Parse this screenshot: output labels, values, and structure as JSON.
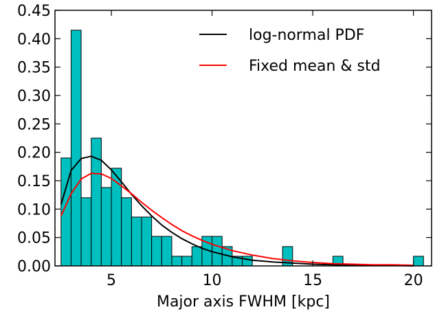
{
  "chart_data": {
    "type": "bar",
    "xlabel": "Major axis FWHM [kpc]",
    "ylabel": "",
    "xlim": [
      2.2,
      20.9
    ],
    "ylim": [
      0,
      0.45
    ],
    "xticks": [
      5,
      10,
      15,
      20
    ],
    "yticks": [
      0.0,
      0.05,
      0.1,
      0.15,
      0.2,
      0.25,
      0.3,
      0.35,
      0.4,
      0.45
    ],
    "ytick_labels": [
      "0.00",
      "0.05",
      "0.10",
      "0.15",
      "0.20",
      "0.25",
      "0.30",
      "0.35",
      "0.40",
      "0.45"
    ],
    "xtick_labels": [
      "5",
      "10",
      "15",
      "20"
    ],
    "grid": false,
    "legend_position": "top-right",
    "bar_color": "#00bfbf",
    "bar_edge_color": "#000000",
    "histogram": {
      "bin_width": 0.5,
      "bin_starts": [
        2.5,
        3.0,
        3.5,
        4.0,
        4.5,
        5.0,
        5.5,
        6.0,
        6.5,
        7.0,
        7.5,
        8.0,
        8.5,
        9.0,
        9.5,
        10.0,
        10.5,
        11.0,
        11.5,
        12.0,
        12.5,
        13.0,
        13.5,
        14.0,
        14.5,
        15.0,
        15.5,
        16.0,
        16.5,
        17.0,
        17.5,
        18.0,
        18.5,
        19.0,
        19.5,
        20.0
      ],
      "values": [
        0.19,
        0.415,
        0.12,
        0.225,
        0.138,
        0.172,
        0.12,
        0.086,
        0.086,
        0.052,
        0.052,
        0.017,
        0.017,
        0.034,
        0.052,
        0.052,
        0.034,
        0.017,
        0.017,
        0.0,
        0.0,
        0.0,
        0.034,
        0.0,
        0.0,
        0.0,
        0.0,
        0.017,
        0.0,
        0.0,
        0.0,
        0.0,
        0.0,
        0.0,
        0.0,
        0.017
      ]
    },
    "series": [
      {
        "name": "log-normal PDF",
        "color": "#000000",
        "x": [
          2.5,
          3.0,
          3.5,
          4.0,
          4.5,
          5.0,
          5.5,
          6.0,
          6.5,
          7.0,
          7.5,
          8.0,
          8.5,
          9.0,
          9.5,
          10.0,
          11.0,
          12.0,
          13.0,
          14.0,
          15.0,
          16.0,
          17.0,
          18.0,
          19.0,
          20.0
        ],
        "y": [
          0.108,
          0.168,
          0.189,
          0.193,
          0.186,
          0.169,
          0.148,
          0.126,
          0.106,
          0.088,
          0.072,
          0.059,
          0.048,
          0.039,
          0.031,
          0.025,
          0.016,
          0.01,
          0.007,
          0.005,
          0.003,
          0.002,
          0.001,
          0.001,
          0.001,
          0.0
        ]
      },
      {
        "name": "Fixed mean & std",
        "color": "#ff0000",
        "x": [
          2.5,
          3.0,
          3.5,
          4.0,
          4.5,
          5.0,
          5.5,
          6.0,
          6.5,
          7.0,
          7.5,
          8.0,
          8.5,
          9.0,
          9.5,
          10.0,
          11.0,
          12.0,
          13.0,
          14.0,
          15.0,
          16.0,
          17.0,
          18.0,
          19.0,
          20.0
        ],
        "y": [
          0.088,
          0.127,
          0.153,
          0.163,
          0.162,
          0.154,
          0.141,
          0.127,
          0.112,
          0.098,
          0.085,
          0.073,
          0.062,
          0.053,
          0.045,
          0.038,
          0.027,
          0.019,
          0.013,
          0.009,
          0.006,
          0.004,
          0.003,
          0.002,
          0.002,
          0.001
        ]
      }
    ]
  }
}
